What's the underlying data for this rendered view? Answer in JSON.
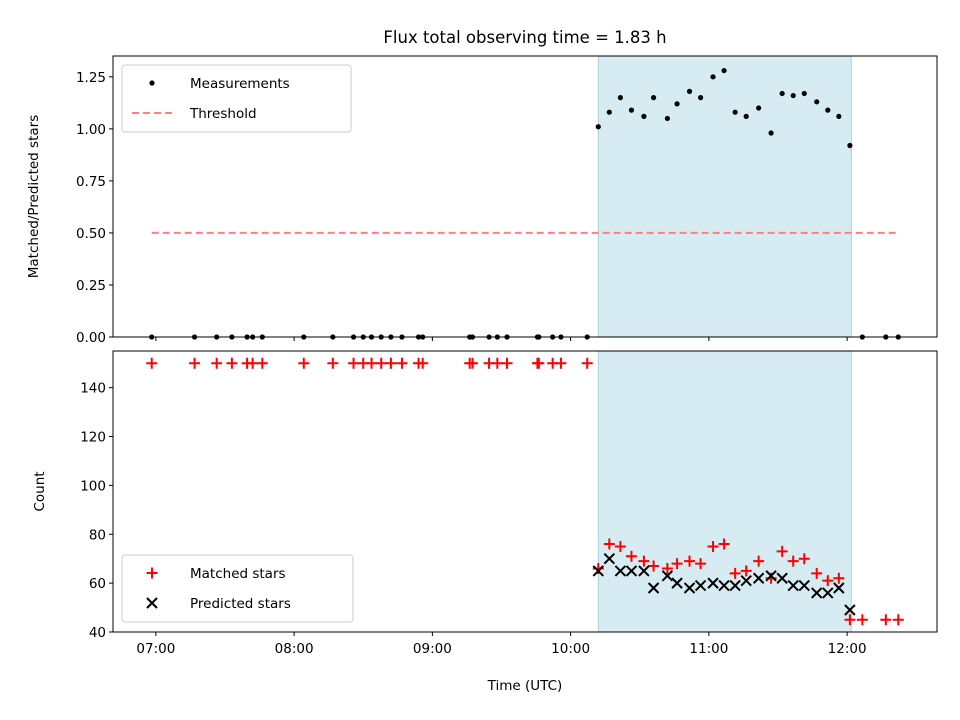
{
  "chart_data": [
    {
      "type": "scatter",
      "title": "Flux total observing time = 1.83 h",
      "xlabel": "",
      "ylabel": "Matched/Predicted stars",
      "xlim": [
        6.69,
        12.65
      ],
      "ylim": [
        0,
        1.35
      ],
      "yticks": [
        0,
        0.25,
        0.5,
        0.75,
        1.0,
        1.25
      ],
      "ytick_labels": [
        "0.00",
        "0.25",
        "0.50",
        "0.75",
        "1.00",
        "1.25"
      ],
      "shaded_region": {
        "x": [
          10.2,
          12.03
        ]
      },
      "legend": {
        "position": "top-left",
        "entries": [
          "Measurements",
          "Threshold"
        ]
      },
      "series": [
        {
          "name": "Measurements",
          "color": "#000000",
          "marker": "dot",
          "x": [
            6.97,
            7.28,
            7.44,
            7.55,
            7.66,
            7.7,
            7.77,
            8.07,
            8.28,
            8.43,
            8.5,
            8.56,
            8.63,
            8.7,
            8.78,
            8.9,
            8.93,
            9.27,
            9.29,
            9.41,
            9.47,
            9.54,
            9.76,
            9.77,
            9.87,
            9.93,
            10.12,
            10.2,
            10.28,
            10.36,
            10.44,
            10.53,
            10.6,
            10.7,
            10.77,
            10.86,
            10.94,
            11.03,
            11.11,
            11.19,
            11.27,
            11.36,
            11.45,
            11.53,
            11.61,
            11.69,
            11.78,
            11.86,
            11.94,
            12.02,
            12.11,
            12.28,
            12.37
          ],
          "y": [
            0,
            0,
            0,
            0,
            0,
            0,
            0,
            0,
            0,
            0,
            0,
            0,
            0,
            0,
            0,
            0,
            0,
            0,
            0,
            0,
            0,
            0,
            0,
            0,
            0,
            0,
            0,
            1.01,
            1.08,
            1.15,
            1.09,
            1.06,
            1.15,
            1.05,
            1.12,
            1.18,
            1.15,
            1.25,
            1.28,
            1.08,
            1.06,
            1.1,
            0.98,
            1.17,
            1.16,
            1.17,
            1.13,
            1.09,
            1.06,
            0.92,
            0,
            0,
            0
          ]
        },
        {
          "name": "Threshold",
          "color": "#ff7f7f",
          "style": "dashed",
          "x": [
            6.97,
            12.37
          ],
          "y": [
            0.5,
            0.5
          ]
        }
      ]
    },
    {
      "type": "scatter",
      "title": "",
      "xlabel": "Time (UTC)",
      "ylabel": "Count",
      "xlim": [
        6.69,
        12.65
      ],
      "ylim": [
        40,
        155
      ],
      "yticks": [
        40,
        60,
        80,
        100,
        120,
        140
      ],
      "ytick_labels": [
        "40",
        "60",
        "80",
        "100",
        "120",
        "140"
      ],
      "xticks": [
        7,
        8,
        9,
        10,
        11,
        12
      ],
      "xtick_labels": [
        "07:00",
        "08:00",
        "09:00",
        "10:00",
        "11:00",
        "12:00"
      ],
      "shaded_region": {
        "x": [
          10.2,
          12.03
        ]
      },
      "legend": {
        "position": "bottom-left",
        "entries": [
          "Matched stars",
          "Predicted stars"
        ]
      },
      "series": [
        {
          "name": "Matched stars",
          "color": "#ff0000",
          "marker": "plus",
          "x": [
            6.97,
            7.28,
            7.44,
            7.55,
            7.66,
            7.7,
            7.77,
            8.07,
            8.28,
            8.43,
            8.5,
            8.56,
            8.63,
            8.7,
            8.78,
            8.9,
            8.93,
            9.27,
            9.29,
            9.41,
            9.47,
            9.54,
            9.76,
            9.77,
            9.87,
            9.93,
            10.12,
            10.2,
            10.28,
            10.36,
            10.44,
            10.53,
            10.6,
            10.7,
            10.77,
            10.86,
            10.94,
            11.03,
            11.11,
            11.19,
            11.27,
            11.36,
            11.45,
            11.53,
            11.61,
            11.69,
            11.78,
            11.86,
            11.94,
            12.02,
            12.11,
            12.28,
            12.37
          ],
          "y": [
            150,
            150,
            150,
            150,
            150,
            150,
            150,
            150,
            150,
            150,
            150,
            150,
            150,
            150,
            150,
            150,
            150,
            150,
            150,
            150,
            150,
            150,
            150,
            150,
            150,
            150,
            150,
            66,
            76,
            75,
            71,
            69,
            67,
            66,
            68,
            69,
            68,
            75,
            76,
            64,
            65,
            69,
            62,
            73,
            69,
            70,
            64,
            61,
            62,
            45,
            45,
            45,
            45
          ]
        },
        {
          "name": "Predicted stars",
          "color": "#000000",
          "marker": "x",
          "x": [
            10.2,
            10.28,
            10.36,
            10.44,
            10.53,
            10.6,
            10.7,
            10.77,
            10.86,
            10.94,
            11.03,
            11.11,
            11.19,
            11.27,
            11.36,
            11.45,
            11.53,
            11.61,
            11.69,
            11.78,
            11.86,
            11.94,
            12.02
          ],
          "y": [
            65,
            70,
            65,
            65,
            65,
            58,
            63,
            60,
            58,
            59,
            60,
            59,
            59,
            61,
            62,
            63,
            62,
            59,
            59,
            56,
            56,
            58,
            49
          ]
        }
      ]
    }
  ]
}
